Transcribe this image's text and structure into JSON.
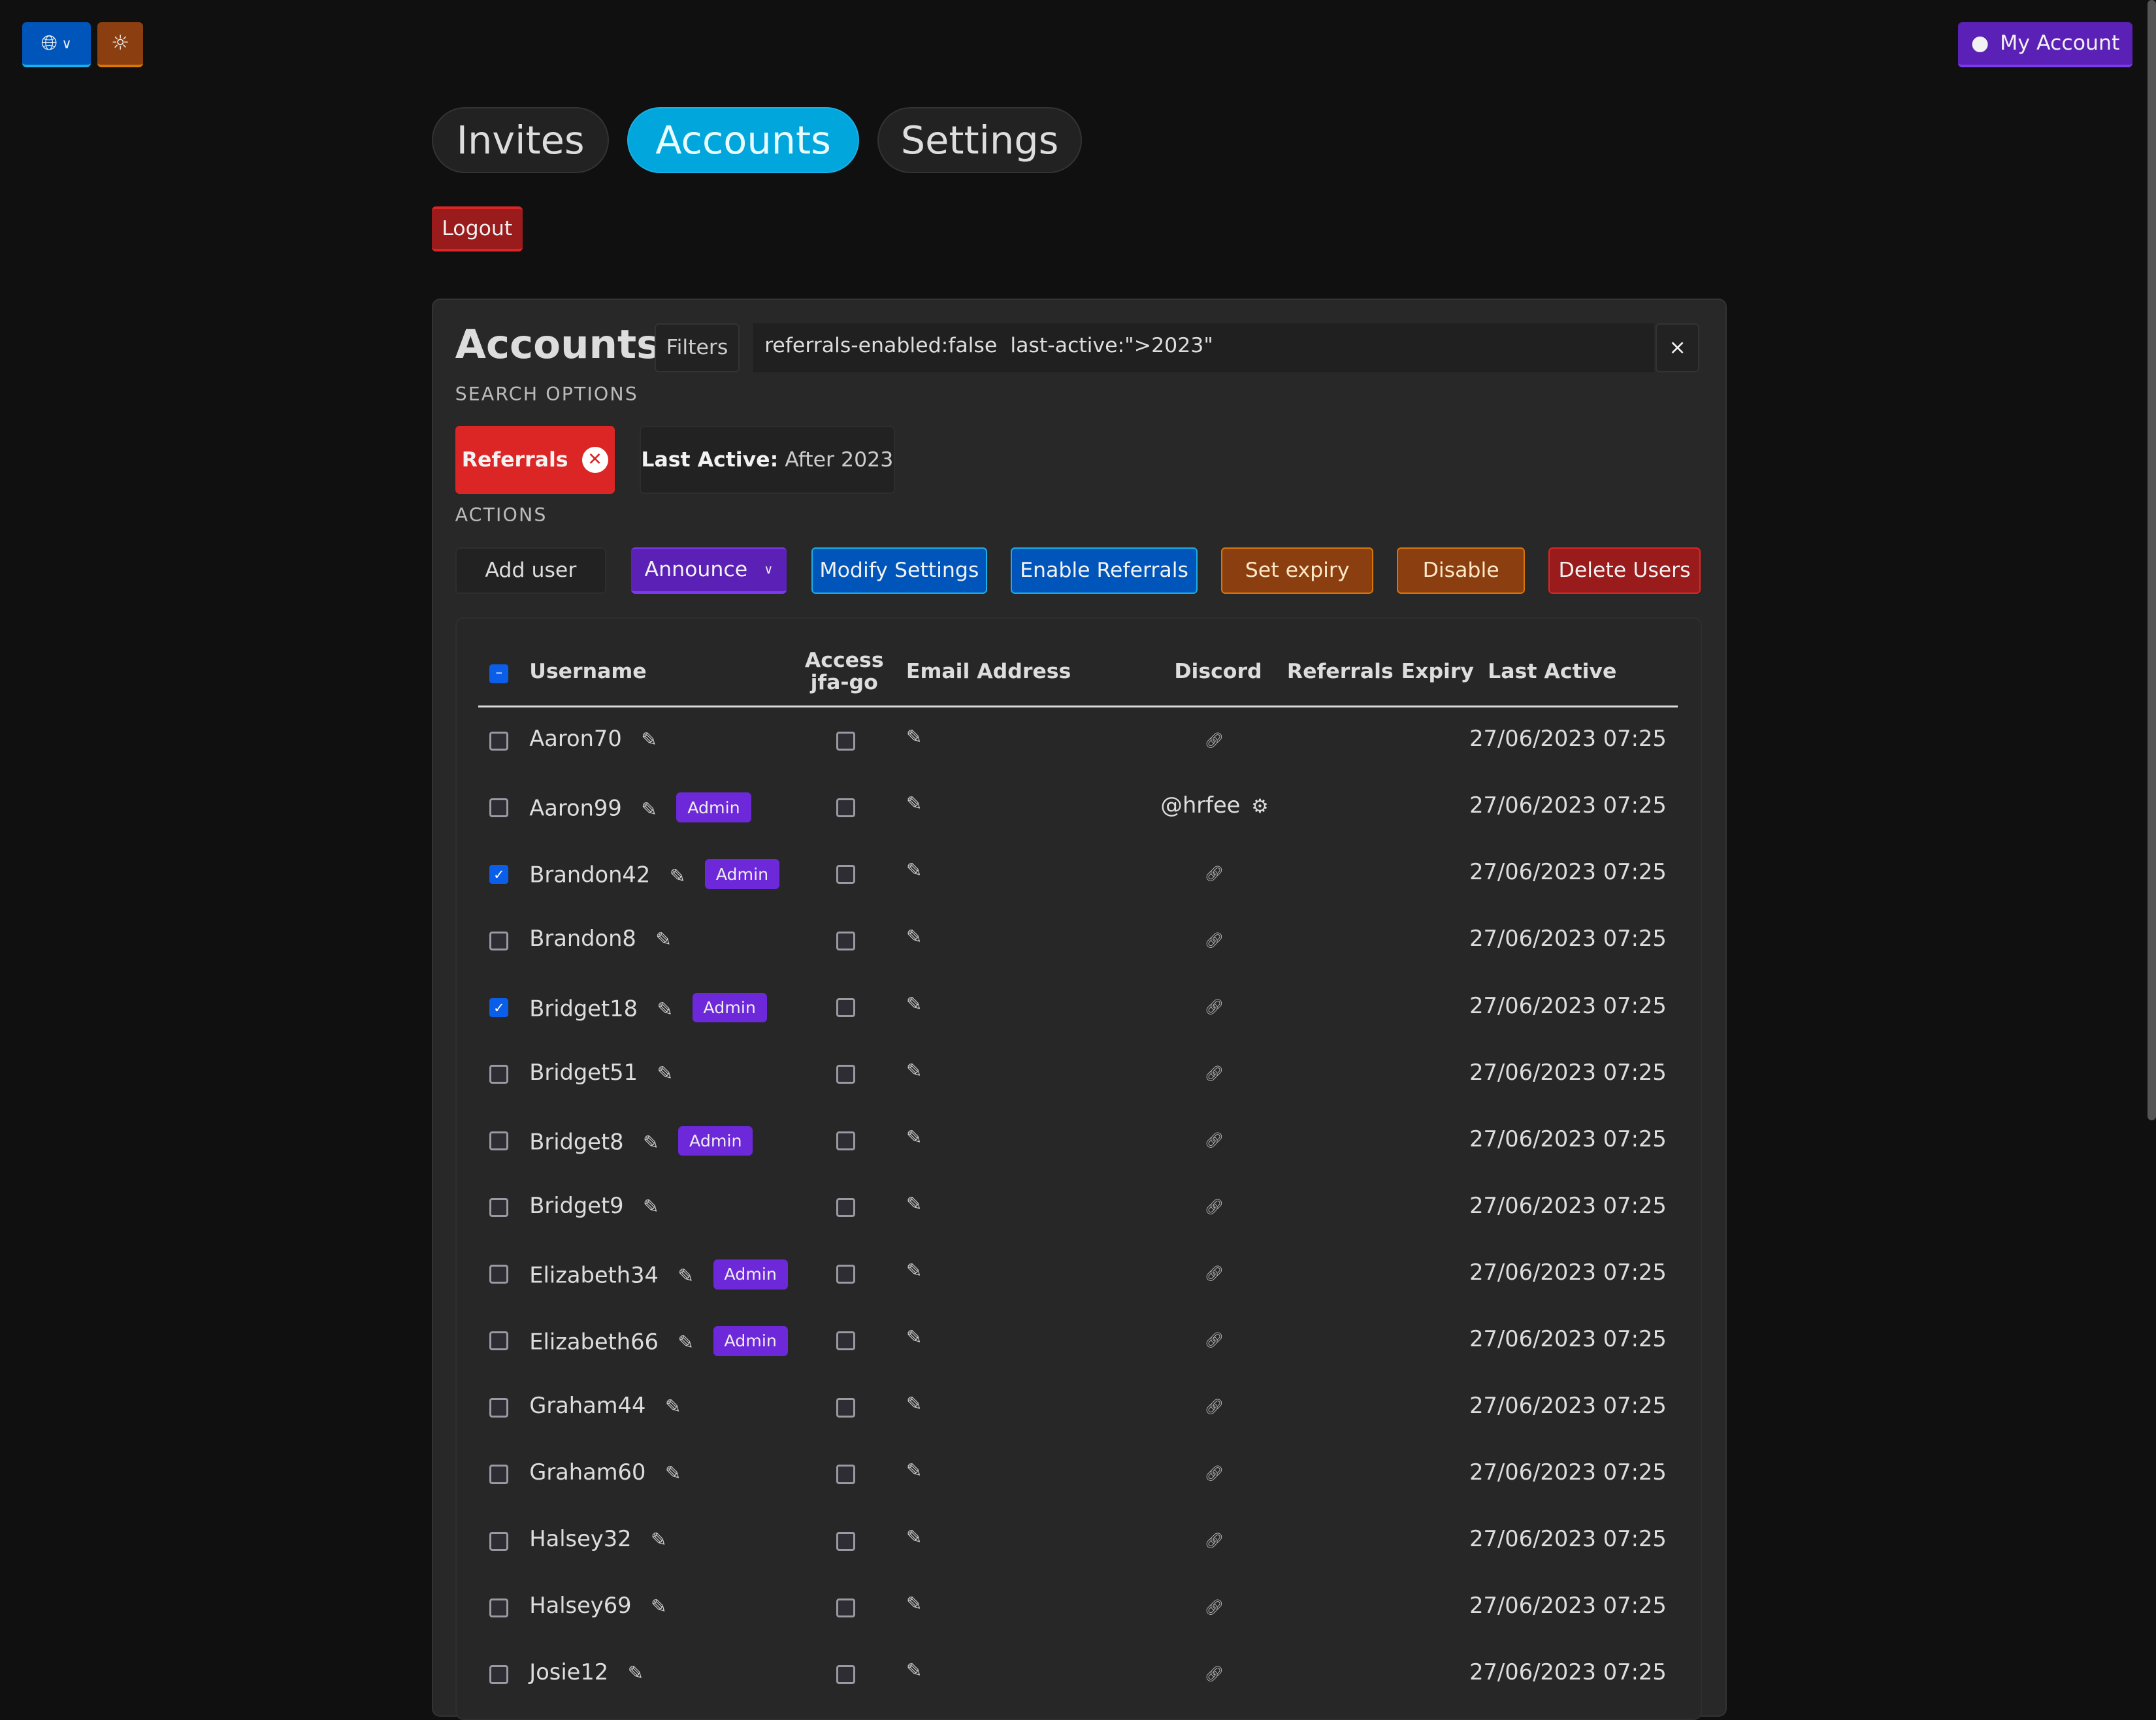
{
  "topbar": {
    "language_icon": "globe-icon",
    "theme_icon": "sun-icon",
    "account_label": "My Account"
  },
  "tabs": [
    {
      "label": "Invites",
      "active": false
    },
    {
      "label": "Accounts",
      "active": true
    },
    {
      "label": "Settings",
      "active": false
    }
  ],
  "logout_label": "Logout",
  "panel": {
    "title": "Accounts",
    "filters_label": "Filters",
    "search_value": "referrals-enabled:false  last-active:\">2023\"",
    "clear_label": "×",
    "search_options_label": "SEARCH OPTIONS",
    "chips": [
      {
        "label": "Referrals"
      },
      {
        "key": "Last Active:",
        "value": "After 2023"
      }
    ],
    "actions_label": "ACTIONS",
    "actions": [
      "Add user",
      "Announce",
      "Modify Settings",
      "Enable Referrals",
      "Set expiry",
      "Disable",
      "Delete Users"
    ]
  },
  "table": {
    "headers": {
      "username": "Username",
      "access_line1": "Access",
      "access_line2": "jfa-go",
      "email": "Email Address",
      "discord": "Discord",
      "referrals": "Referrals",
      "expiry": "Expiry",
      "last_active": "Last Active"
    },
    "admin_badge": "Admin",
    "rows": [
      {
        "username": "Aaron70",
        "admin": false,
        "checked": false,
        "discord": "",
        "last_active": "27/06/2023 07:25"
      },
      {
        "username": "Aaron99",
        "admin": true,
        "checked": false,
        "discord": "@hrfee",
        "last_active": "27/06/2023 07:25"
      },
      {
        "username": "Brandon42",
        "admin": true,
        "checked": true,
        "discord": "",
        "last_active": "27/06/2023 07:25"
      },
      {
        "username": "Brandon8",
        "admin": false,
        "checked": false,
        "discord": "",
        "last_active": "27/06/2023 07:25"
      },
      {
        "username": "Bridget18",
        "admin": true,
        "checked": true,
        "discord": "",
        "last_active": "27/06/2023 07:25"
      },
      {
        "username": "Bridget51",
        "admin": false,
        "checked": false,
        "discord": "",
        "last_active": "27/06/2023 07:25"
      },
      {
        "username": "Bridget8",
        "admin": true,
        "checked": false,
        "discord": "",
        "last_active": "27/06/2023 07:25"
      },
      {
        "username": "Bridget9",
        "admin": false,
        "checked": false,
        "discord": "",
        "last_active": "27/06/2023 07:25"
      },
      {
        "username": "Elizabeth34",
        "admin": true,
        "checked": false,
        "discord": "",
        "last_active": "27/06/2023 07:25"
      },
      {
        "username": "Elizabeth66",
        "admin": true,
        "checked": false,
        "discord": "",
        "last_active": "27/06/2023 07:25"
      },
      {
        "username": "Graham44",
        "admin": false,
        "checked": false,
        "discord": "",
        "last_active": "27/06/2023 07:25"
      },
      {
        "username": "Graham60",
        "admin": false,
        "checked": false,
        "discord": "",
        "last_active": "27/06/2023 07:25"
      },
      {
        "username": "Halsey32",
        "admin": false,
        "checked": false,
        "discord": "",
        "last_active": "27/06/2023 07:25"
      },
      {
        "username": "Halsey69",
        "admin": false,
        "checked": false,
        "discord": "",
        "last_active": "27/06/2023 07:25"
      },
      {
        "username": "Josie12",
        "admin": false,
        "checked": false,
        "discord": "",
        "last_active": "27/06/2023 07:25"
      }
    ]
  },
  "colors": {
    "info": "#0055bb",
    "accent": "#00a6dc",
    "warning": "#8b3f10",
    "danger": "#991b1b",
    "urge": "#5b21b6",
    "chip_red": "#dc2626"
  }
}
